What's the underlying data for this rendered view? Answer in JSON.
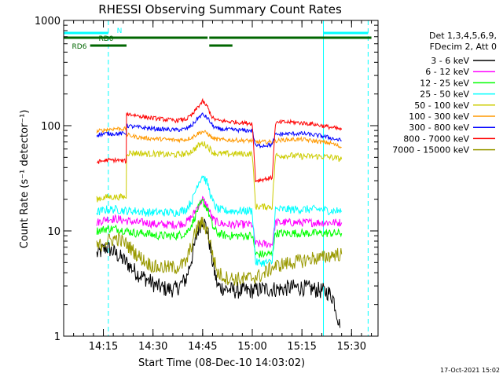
{
  "chart_data": {
    "type": "line",
    "title": "RHESSI Observing Summary Count Rates",
    "xlabel": "Start Time (08-Dec-10 14:03:02)",
    "ylabel": "Count Rate (s⁻¹ detector⁻¹)",
    "y_scale": "log",
    "ylim": [
      1,
      1000
    ],
    "x_unit": "minutes since 14:03:02",
    "xlim": [
      0,
      95
    ],
    "x_ticks": [
      {
        "label": "14:15",
        "value": 12
      },
      {
        "label": "14:30",
        "value": 27
      },
      {
        "label": "14:45",
        "value": 42
      },
      {
        "label": "15:00",
        "value": 57
      },
      {
        "label": "15:15",
        "value": 72
      },
      {
        "label": "15:30",
        "value": 87
      }
    ],
    "y_ticks": [
      {
        "label": "1",
        "value": 1
      },
      {
        "label": "10",
        "value": 10
      },
      {
        "label": "100",
        "value": 100
      },
      {
        "label": "1000",
        "value": 1000
      }
    ],
    "legend": {
      "placement": "top-right",
      "header": [
        "Det 1,3,4,5,6,9,",
        "FDecim 2, Att 0"
      ]
    },
    "flags": [
      {
        "label": "N",
        "color": "#00ffff",
        "segments": [
          [
            0,
            13.5
          ],
          [
            78.5,
            92
          ]
        ]
      },
      {
        "label": "RD0",
        "color": "#006600",
        "segments": [
          [
            0,
            43.5
          ],
          [
            44,
            52
          ],
          [
            50,
            93
          ]
        ]
      },
      {
        "label": "RD6",
        "color": "#006600",
        "segments": [
          [
            8,
            19
          ],
          [
            44,
            51
          ]
        ]
      }
    ],
    "vertical_markers": [
      {
        "style": "solid",
        "x": 0,
        "color": "#00ffff"
      },
      {
        "style": "dashed",
        "x": 13.5,
        "color": "#00ffff"
      },
      {
        "style": "solid",
        "x": 78.5,
        "color": "#00ffff"
      },
      {
        "style": "dashed",
        "x": 92,
        "color": "#00ffff"
      }
    ],
    "series": [
      {
        "name": "3 - 6 keV",
        "color": "#000000",
        "noise": 0.08,
        "points": [
          [
            10,
            6
          ],
          [
            13,
            7
          ],
          [
            16,
            6
          ],
          [
            19,
            5
          ],
          [
            22,
            4
          ],
          [
            25,
            3.5
          ],
          [
            28,
            3
          ],
          [
            31,
            2.8
          ],
          [
            34,
            2.8
          ],
          [
            37,
            3.5
          ],
          [
            39,
            6
          ],
          [
            40.5,
            10
          ],
          [
            42,
            13
          ],
          [
            43.5,
            10
          ],
          [
            45,
            5
          ],
          [
            46.5,
            3
          ],
          [
            49,
            2.8
          ],
          [
            52,
            2.7
          ],
          [
            55,
            2.7
          ],
          [
            57,
            2.7
          ],
          [
            60,
            2.8
          ],
          [
            63,
            2.8
          ],
          [
            66,
            2.8
          ],
          [
            69,
            2.9
          ],
          [
            72,
            2.9
          ],
          [
            75,
            2.8
          ],
          [
            78,
            2.7
          ],
          [
            80,
            2.6
          ],
          [
            81.5,
            2.3
          ],
          [
            82.5,
            1.7
          ],
          [
            83.5,
            1.2
          ]
        ]
      },
      {
        "name": "6 - 12 keV",
        "color": "#ff00ff",
        "noise": 0.04,
        "points": [
          [
            10,
            12
          ],
          [
            13,
            13
          ],
          [
            16,
            13
          ],
          [
            19,
            12.5
          ],
          [
            22,
            12
          ],
          [
            25,
            12
          ],
          [
            28,
            11.5
          ],
          [
            31,
            11.5
          ],
          [
            34,
            11.5
          ],
          [
            37,
            12
          ],
          [
            39,
            14
          ],
          [
            40.5,
            17
          ],
          [
            42,
            20
          ],
          [
            43.5,
            17
          ],
          [
            45,
            13
          ],
          [
            46.5,
            12
          ],
          [
            49,
            11.5
          ],
          [
            52,
            11.5
          ],
          [
            55,
            11.5
          ],
          [
            57,
            11.5
          ],
          [
            58,
            7.5
          ],
          [
            63,
            7.5
          ],
          [
            64,
            12
          ],
          [
            66,
            12
          ],
          [
            69,
            12
          ],
          [
            72,
            12
          ],
          [
            75,
            12
          ],
          [
            78,
            12
          ],
          [
            81,
            12
          ],
          [
            84,
            12
          ]
        ]
      },
      {
        "name": "12 - 25 keV",
        "color": "#00ff00",
        "noise": 0.04,
        "points": [
          [
            10,
            10
          ],
          [
            13,
            10.5
          ],
          [
            16,
            10.5
          ],
          [
            19,
            10
          ],
          [
            22,
            9.5
          ],
          [
            25,
            9.5
          ],
          [
            28,
            9
          ],
          [
            31,
            9
          ],
          [
            34,
            9
          ],
          [
            37,
            9.5
          ],
          [
            39,
            12
          ],
          [
            40.5,
            16
          ],
          [
            42,
            19
          ],
          [
            43.5,
            16
          ],
          [
            45,
            11
          ],
          [
            46.5,
            9.5
          ],
          [
            49,
            9
          ],
          [
            52,
            9
          ],
          [
            55,
            9
          ],
          [
            57,
            9
          ],
          [
            58,
            6
          ],
          [
            63,
            6
          ],
          [
            64,
            9.5
          ],
          [
            66,
            9.5
          ],
          [
            69,
            9.5
          ],
          [
            72,
            9.5
          ],
          [
            75,
            9.5
          ],
          [
            78,
            9.5
          ],
          [
            81,
            9.5
          ],
          [
            84,
            9.5
          ]
        ]
      },
      {
        "name": "25 - 50 keV",
        "color": "#00ffff",
        "noise": 0.04,
        "points": [
          [
            10,
            15
          ],
          [
            13,
            16
          ],
          [
            16,
            16
          ],
          [
            19,
            15.5
          ],
          [
            22,
            15.5
          ],
          [
            25,
            15
          ],
          [
            28,
            15
          ],
          [
            31,
            15
          ],
          [
            34,
            15
          ],
          [
            37,
            16
          ],
          [
            39,
            20
          ],
          [
            40.5,
            28
          ],
          [
            42,
            34
          ],
          [
            43.5,
            28
          ],
          [
            45,
            19
          ],
          [
            46.5,
            16
          ],
          [
            49,
            15.5
          ],
          [
            52,
            15.5
          ],
          [
            55,
            15.5
          ],
          [
            57,
            15.5
          ],
          [
            58,
            5
          ],
          [
            63,
            5
          ],
          [
            64,
            16
          ],
          [
            66,
            16
          ],
          [
            69,
            16
          ],
          [
            72,
            16
          ],
          [
            75,
            16
          ],
          [
            78,
            16
          ],
          [
            81,
            15.5
          ],
          [
            84,
            15.5
          ]
        ]
      },
      {
        "name": "50 - 100 keV",
        "color": "#cccc00",
        "noise": 0.03,
        "points": [
          [
            10,
            20
          ],
          [
            13,
            21
          ],
          [
            16,
            21
          ],
          [
            18.9,
            21
          ],
          [
            19,
            55
          ],
          [
            22,
            55
          ],
          [
            25,
            54
          ],
          [
            28,
            54
          ],
          [
            31,
            53
          ],
          [
            34,
            53
          ],
          [
            37,
            54
          ],
          [
            39,
            58
          ],
          [
            40.5,
            64
          ],
          [
            42,
            68
          ],
          [
            43.5,
            64
          ],
          [
            45,
            56
          ],
          [
            46.5,
            54
          ],
          [
            49,
            54
          ],
          [
            52,
            54
          ],
          [
            55,
            54
          ],
          [
            57,
            54
          ],
          [
            58,
            17
          ],
          [
            63,
            17
          ],
          [
            64,
            52
          ],
          [
            66,
            52
          ],
          [
            69,
            52
          ],
          [
            72,
            51
          ],
          [
            75,
            51
          ],
          [
            78,
            51
          ],
          [
            81,
            50
          ],
          [
            84,
            48
          ]
        ]
      },
      {
        "name": "100 - 300 keV",
        "color": "#ff9900",
        "noise": 0.02,
        "points": [
          [
            10,
            88
          ],
          [
            13,
            92
          ],
          [
            16,
            94
          ],
          [
            18.9,
            93
          ],
          [
            19,
            82
          ],
          [
            22,
            78
          ],
          [
            25,
            76
          ],
          [
            28,
            75
          ],
          [
            31,
            74
          ],
          [
            34,
            73
          ],
          [
            37,
            74
          ],
          [
            39,
            78
          ],
          [
            40.5,
            84
          ],
          [
            42,
            88
          ],
          [
            43.5,
            84
          ],
          [
            45,
            76
          ],
          [
            46.5,
            74
          ],
          [
            49,
            73
          ],
          [
            52,
            73
          ],
          [
            55,
            72
          ],
          [
            57,
            72
          ],
          [
            58,
            70
          ],
          [
            63,
            70
          ],
          [
            64,
            72
          ],
          [
            66,
            73
          ],
          [
            69,
            74
          ],
          [
            72,
            74
          ],
          [
            75,
            72
          ],
          [
            78,
            70
          ],
          [
            81,
            68
          ],
          [
            84,
            62
          ]
        ]
      },
      {
        "name": "300 - 800 keV",
        "color": "#0000ff",
        "noise": 0.02,
        "points": [
          [
            10,
            82
          ],
          [
            13,
            84
          ],
          [
            16,
            84
          ],
          [
            18.9,
            84
          ],
          [
            19,
            100
          ],
          [
            22,
            97
          ],
          [
            25,
            95
          ],
          [
            28,
            93
          ],
          [
            31,
            92
          ],
          [
            34,
            91
          ],
          [
            37,
            93
          ],
          [
            39,
            102
          ],
          [
            40.5,
            118
          ],
          [
            42,
            128
          ],
          [
            43.5,
            118
          ],
          [
            45,
            100
          ],
          [
            46.5,
            93
          ],
          [
            49,
            92
          ],
          [
            52,
            91
          ],
          [
            55,
            90
          ],
          [
            57,
            90
          ],
          [
            58,
            64
          ],
          [
            63,
            66
          ],
          [
            64,
            82
          ],
          [
            66,
            83
          ],
          [
            69,
            84
          ],
          [
            72,
            84
          ],
          [
            75,
            82
          ],
          [
            78,
            80
          ],
          [
            81,
            76
          ],
          [
            84,
            72
          ]
        ]
      },
      {
        "name": "800 - 7000 keV",
        "color": "#ff0000",
        "noise": 0.02,
        "points": [
          [
            10,
            45
          ],
          [
            13,
            47
          ],
          [
            16,
            47
          ],
          [
            18.9,
            46
          ],
          [
            19,
            130
          ],
          [
            22,
            125
          ],
          [
            25,
            120
          ],
          [
            28,
            117
          ],
          [
            31,
            114
          ],
          [
            34,
            112
          ],
          [
            37,
            115
          ],
          [
            39,
            128
          ],
          [
            40.5,
            150
          ],
          [
            42,
            170
          ],
          [
            43.5,
            150
          ],
          [
            45,
            118
          ],
          [
            46.5,
            112
          ],
          [
            49,
            110
          ],
          [
            52,
            108
          ],
          [
            55,
            106
          ],
          [
            57,
            105
          ],
          [
            58,
            30
          ],
          [
            63,
            32
          ],
          [
            64,
            105
          ],
          [
            66,
            108
          ],
          [
            69,
            108
          ],
          [
            72,
            106
          ],
          [
            75,
            104
          ],
          [
            78,
            100
          ],
          [
            81,
            96
          ],
          [
            84,
            92
          ]
        ]
      },
      {
        "name": "7000 - 15000 keV",
        "color": "#999900",
        "noise": 0.07,
        "points": [
          [
            10,
            7
          ],
          [
            13,
            8
          ],
          [
            16,
            8.5
          ],
          [
            19,
            7.5
          ],
          [
            22,
            6
          ],
          [
            25,
            5
          ],
          [
            28,
            4.5
          ],
          [
            31,
            4.5
          ],
          [
            34,
            4.5
          ],
          [
            37,
            5
          ],
          [
            39,
            8
          ],
          [
            40.5,
            11
          ],
          [
            42,
            12
          ],
          [
            43.5,
            10
          ],
          [
            45,
            6
          ],
          [
            46.5,
            4
          ],
          [
            49,
            3.6
          ],
          [
            52,
            3.5
          ],
          [
            55,
            3.5
          ],
          [
            57,
            3.6
          ],
          [
            60,
            3.8
          ],
          [
            63,
            4.5
          ],
          [
            66,
            4.8
          ],
          [
            69,
            5
          ],
          [
            72,
            5.2
          ],
          [
            75,
            5.5
          ],
          [
            78,
            5.5
          ],
          [
            80,
            5.8
          ],
          [
            82,
            6
          ],
          [
            84,
            6
          ]
        ]
      }
    ]
  },
  "footer": {
    "date": "17-Oct-2021 15:02"
  }
}
